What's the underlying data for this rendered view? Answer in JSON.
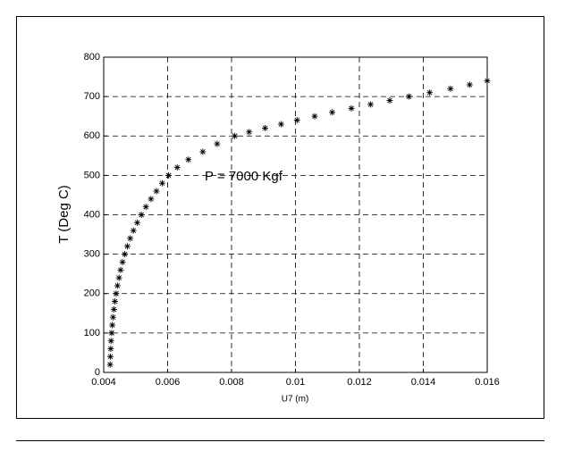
{
  "chart_data": {
    "type": "scatter",
    "xlabel": "U7 (m)",
    "ylabel": "T (Deg C)",
    "annotation": "P = 7000 Kgf",
    "x": [
      0.0042,
      0.00421,
      0.00422,
      0.00423,
      0.00425,
      0.00427,
      0.00429,
      0.00432,
      0.00435,
      0.00439,
      0.00443,
      0.00448,
      0.00453,
      0.00459,
      0.00466,
      0.00474,
      0.00483,
      0.00493,
      0.00505,
      0.00518,
      0.00532,
      0.00548,
      0.00565,
      0.00583,
      0.00603,
      0.0063,
      0.00665,
      0.0071,
      0.00755,
      0.0081,
      0.00855,
      0.00905,
      0.00955,
      0.01005,
      0.0106,
      0.01115,
      0.01175,
      0.01235,
      0.01295,
      0.01355,
      0.0142,
      0.01485,
      0.01545,
      0.016
    ],
    "values": [
      20,
      40,
      60,
      80,
      100,
      120,
      140,
      160,
      180,
      200,
      220,
      240,
      260,
      280,
      300,
      320,
      340,
      360,
      380,
      400,
      420,
      440,
      460,
      480,
      500,
      520,
      540,
      560,
      580,
      600,
      610,
      620,
      630,
      640,
      650,
      660,
      670,
      680,
      690,
      700,
      710,
      720,
      730,
      740
    ],
    "color": "#000000",
    "xlim": [
      0.004,
      0.016
    ],
    "xticks": [
      0.004,
      0.006,
      0.008,
      0.01,
      0.012,
      0.014,
      0.016
    ],
    "ylim": [
      0,
      800
    ],
    "yticks": [
      0,
      100,
      200,
      300,
      400,
      500,
      600,
      700,
      800
    ],
    "grid": true
  }
}
